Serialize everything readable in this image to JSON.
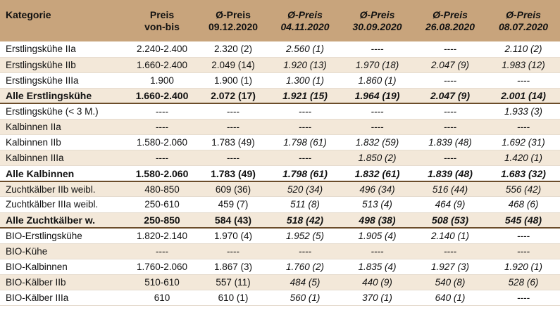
{
  "table": {
    "headers": [
      {
        "line1": "Kategorie",
        "line2": ""
      },
      {
        "line1": "Preis",
        "line2": "von-bis"
      },
      {
        "line1": "Ø-Preis",
        "line2": "09.12.2020"
      },
      {
        "line1": "Ø-Preis",
        "line2": "04.11.2020"
      },
      {
        "line1": "Ø-Preis",
        "line2": "30.09.2020"
      },
      {
        "line1": "Ø-Preis",
        "line2": "26.08.2020"
      },
      {
        "line1": "Ø-Preis",
        "line2": "08.07.2020"
      }
    ],
    "rows": [
      {
        "total": false,
        "cells": [
          "Erstlingskühe IIa",
          "2.240-2.400",
          "2.320 (2)",
          "2.560 (1)",
          "----",
          "----",
          "2.110 (2)"
        ]
      },
      {
        "total": false,
        "cells": [
          "Erstlingskühe IIb",
          "1.660-2.400",
          "2.049 (14)",
          "1.920 (13)",
          "1.970 (18)",
          "2.047 (9)",
          "1.983 (12)"
        ]
      },
      {
        "total": false,
        "cells": [
          "Erstlingskühe IIIa",
          "1.900",
          "1.900 (1)",
          "1.300 (1)",
          "1.860 (1)",
          "----",
          "----"
        ]
      },
      {
        "total": true,
        "cells": [
          "Alle Erstlingskühe",
          "1.660-2.400",
          "2.072 (17)",
          "1.921 (15)",
          "1.964 (19)",
          "2.047 (9)",
          "2.001 (14)"
        ]
      },
      {
        "total": false,
        "cells": [
          "Erstlingskühe (< 3 M.)",
          "----",
          "----",
          "----",
          "----",
          "----",
          "1.933 (3)"
        ]
      },
      {
        "total": false,
        "cells": [
          "Kalbinnen IIa",
          "----",
          "----",
          "----",
          "----",
          "----",
          "----"
        ]
      },
      {
        "total": false,
        "cells": [
          "Kalbinnen IIb",
          "1.580-2.060",
          "1.783 (49)",
          "1.798 (61)",
          "1.832 (59)",
          "1.839 (48)",
          "1.692 (31)"
        ]
      },
      {
        "total": false,
        "cells": [
          "Kalbinnen IIIa",
          "----",
          "----",
          "----",
          "1.850 (2)",
          "----",
          "1.420 (1)"
        ]
      },
      {
        "total": true,
        "cells": [
          "Alle Kalbinnen",
          "1.580-2.060",
          "1.783 (49)",
          "1.798 (61)",
          "1.832 (61)",
          "1.839 (48)",
          "1.683 (32)"
        ]
      },
      {
        "total": false,
        "cells": [
          "Zuchtkälber IIb weibl.",
          "480-850",
          "609 (36)",
          "520 (34)",
          "496 (34)",
          "516 (44)",
          "556 (42)"
        ]
      },
      {
        "total": false,
        "cells": [
          "Zuchtkälber IIIa weibl.",
          "250-610",
          "459 (7)",
          "511 (8)",
          "513 (4)",
          "464 (9)",
          "468 (6)"
        ]
      },
      {
        "total": true,
        "cells": [
          "Alle Zuchtkälber w.",
          "250-850",
          "584 (43)",
          "518 (42)",
          "498 (38)",
          "508 (53)",
          "545 (48)"
        ]
      },
      {
        "total": false,
        "cells": [
          "BIO-Erstlingskühe",
          "1.820-2.140",
          "1.970 (4)",
          "1.952 (5)",
          "1.905 (4)",
          "2.140 (1)",
          "----"
        ]
      },
      {
        "total": false,
        "cells": [
          "BIO-Kühe",
          "----",
          "----",
          "----",
          "----",
          "----",
          "----"
        ]
      },
      {
        "total": false,
        "cells": [
          "BIO-Kalbinnen",
          "1.760-2.060",
          "1.867 (3)",
          "1.760 (2)",
          "1.835 (4)",
          "1.927 (3)",
          "1.920 (1)"
        ]
      },
      {
        "total": false,
        "cells": [
          "BIO-Kälber IIb",
          "510-610",
          "557 (11)",
          "484 (5)",
          "440 (9)",
          "540 (8)",
          "528 (6)"
        ]
      },
      {
        "total": false,
        "cells": [
          "BIO-Kälber IIIa",
          "610",
          "610 (1)",
          "560 (1)",
          "370 (1)",
          "640 (1)",
          "----"
        ]
      }
    ],
    "colors": {
      "header": "#c8a47c",
      "stripe": "#f3e8d9",
      "total_rule": "#6b4c2a"
    }
  }
}
